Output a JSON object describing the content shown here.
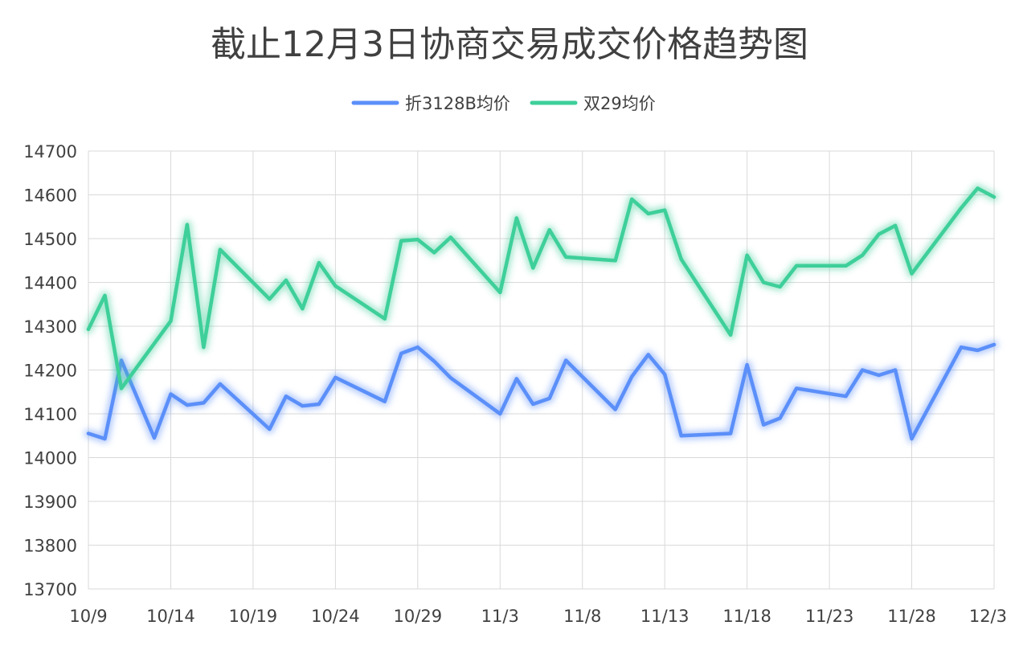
{
  "chart_data": {
    "type": "line",
    "title": "截止12月3日协商交易成交价格趋势图",
    "xlabel": "",
    "ylabel": "",
    "ylim": [
      13700,
      14700
    ],
    "y_ticks": [
      "14700",
      "14600",
      "14500",
      "14400",
      "14300",
      "14200",
      "14100",
      "14000",
      "13900",
      "13800",
      "13700"
    ],
    "x_range": [
      "10/9",
      "12/3"
    ],
    "x_tick_labels": [
      "10/9",
      "10/14",
      "10/19",
      "10/24",
      "10/29",
      "11/3",
      "11/8",
      "11/13",
      "11/18",
      "11/23",
      "11/28",
      "12/3"
    ],
    "grid": true,
    "legend_position": "top-center",
    "series": [
      {
        "name": "折3128B均价",
        "color": "#5b8ff9",
        "points": [
          [
            "10/9",
            14055
          ],
          [
            "10/10",
            14043
          ],
          [
            "10/11",
            14222
          ],
          [
            "10/13",
            14045
          ],
          [
            "10/14",
            14145
          ],
          [
            "10/15",
            14120
          ],
          [
            "10/16",
            14125
          ],
          [
            "10/17",
            14168
          ],
          [
            "10/20",
            14065
          ],
          [
            "10/21",
            14140
          ],
          [
            "10/22",
            14118
          ],
          [
            "10/23",
            14122
          ],
          [
            "10/24",
            14183
          ],
          [
            "10/27",
            14128
          ],
          [
            "10/28",
            14238
          ],
          [
            "10/29",
            14252
          ],
          [
            "10/30",
            14220
          ],
          [
            "10/31",
            14182
          ],
          [
            "11/3",
            14100
          ],
          [
            "11/4",
            14180
          ],
          [
            "11/5",
            14122
          ],
          [
            "11/6",
            14135
          ],
          [
            "11/7",
            14222
          ],
          [
            "11/10",
            14110
          ],
          [
            "11/11",
            14185
          ],
          [
            "11/12",
            14235
          ],
          [
            "11/13",
            14190
          ],
          [
            "11/14",
            14050
          ],
          [
            "11/17",
            14055
          ],
          [
            "11/18",
            14212
          ],
          [
            "11/19",
            14075
          ],
          [
            "11/20",
            14090
          ],
          [
            "11/21",
            14158
          ],
          [
            "11/24",
            14140
          ],
          [
            "11/25",
            14200
          ],
          [
            "11/26",
            14188
          ],
          [
            "11/27",
            14200
          ],
          [
            "11/28",
            14043
          ],
          [
            "12/1",
            14252
          ],
          [
            "12/2",
            14245
          ],
          [
            "12/3",
            14258
          ]
        ]
      },
      {
        "name": "双29均价",
        "color": "#3ecf9a",
        "points": [
          [
            "10/9",
            14293
          ],
          [
            "10/10",
            14370
          ],
          [
            "10/11",
            14158
          ],
          [
            "10/14",
            14312
          ],
          [
            "10/15",
            14532
          ],
          [
            "10/16",
            14252
          ],
          [
            "10/17",
            14475
          ],
          [
            "10/20",
            14362
          ],
          [
            "10/21",
            14405
          ],
          [
            "10/22",
            14340
          ],
          [
            "10/23",
            14445
          ],
          [
            "10/24",
            14392
          ],
          [
            "10/27",
            14317
          ],
          [
            "10/28",
            14495
          ],
          [
            "10/29",
            14498
          ],
          [
            "10/30",
            14468
          ],
          [
            "10/31",
            14503
          ],
          [
            "11/3",
            14377
          ],
          [
            "11/4",
            14547
          ],
          [
            "11/5",
            14433
          ],
          [
            "11/6",
            14520
          ],
          [
            "11/7",
            14458
          ],
          [
            "11/10",
            14450
          ],
          [
            "11/11",
            14590
          ],
          [
            "11/12",
            14557
          ],
          [
            "11/13",
            14565
          ],
          [
            "11/14",
            14453
          ],
          [
            "11/17",
            14280
          ],
          [
            "11/18",
            14462
          ],
          [
            "11/19",
            14400
          ],
          [
            "11/20",
            14390
          ],
          [
            "11/21",
            14438
          ],
          [
            "11/24",
            14438
          ],
          [
            "11/25",
            14462
          ],
          [
            "11/26",
            14510
          ],
          [
            "11/27",
            14530
          ],
          [
            "11/28",
            14420
          ],
          [
            "12/1",
            14570
          ],
          [
            "12/2",
            14615
          ],
          [
            "12/3",
            14595
          ]
        ]
      }
    ]
  }
}
